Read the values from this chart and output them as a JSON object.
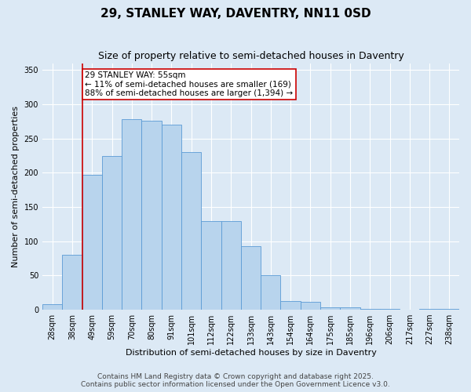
{
  "title": "29, STANLEY WAY, DAVENTRY, NN11 0SD",
  "subtitle": "Size of property relative to semi-detached houses in Daventry",
  "xlabel": "Distribution of semi-detached houses by size in Daventry",
  "ylabel": "Number of semi-detached properties",
  "categories": [
    "28sqm",
    "38sqm",
    "49sqm",
    "59sqm",
    "70sqm",
    "80sqm",
    "91sqm",
    "101sqm",
    "112sqm",
    "122sqm",
    "133sqm",
    "143sqm",
    "154sqm",
    "164sqm",
    "175sqm",
    "185sqm",
    "196sqm",
    "206sqm",
    "217sqm",
    "227sqm",
    "238sqm"
  ],
  "values": [
    8,
    80,
    197,
    224,
    278,
    276,
    270,
    230,
    130,
    130,
    93,
    51,
    13,
    12,
    4,
    4,
    1,
    1,
    0,
    1,
    1
  ],
  "bar_color": "#b8d4ed",
  "bar_edge_color": "#5b9bd5",
  "vline_index": 1.5,
  "annotation_text": "29 STANLEY WAY: 55sqm\n← 11% of semi-detached houses are smaller (169)\n88% of semi-detached houses are larger (1,394) →",
  "annotation_box_color": "#ffffff",
  "annotation_box_edge_color": "#cc0000",
  "vline_color": "#cc0000",
  "ylim": [
    0,
    360
  ],
  "yticks": [
    0,
    50,
    100,
    150,
    200,
    250,
    300,
    350
  ],
  "footer_line1": "Contains HM Land Registry data © Crown copyright and database right 2025.",
  "footer_line2": "Contains public sector information licensed under the Open Government Licence v3.0.",
  "bg_color": "#dce9f5",
  "plot_bg_color": "#dce9f5",
  "grid_color": "#ffffff",
  "title_fontsize": 11,
  "subtitle_fontsize": 9,
  "label_fontsize": 8,
  "tick_fontsize": 7,
  "annotation_fontsize": 7.5,
  "footer_fontsize": 6.5
}
